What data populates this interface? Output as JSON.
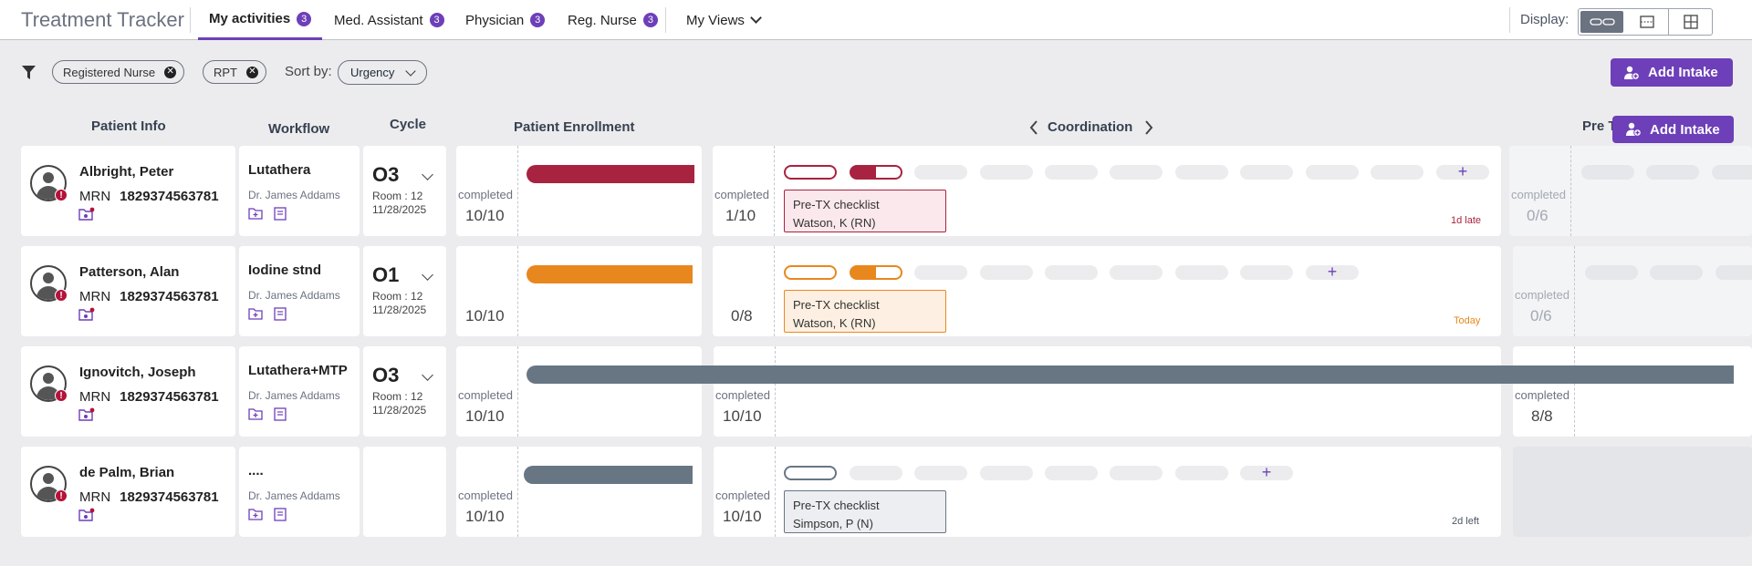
{
  "app": {
    "title": "Treatment Tracker"
  },
  "tabs": [
    {
      "label": "My activities",
      "count": "3"
    },
    {
      "label": "Med. Assistant",
      "count": "3"
    },
    {
      "label": "Physician",
      "count": "3"
    },
    {
      "label": "Reg. Nurse",
      "count": "3"
    }
  ],
  "my_views": {
    "label": "My Views"
  },
  "display": {
    "label": "Display:",
    "options": [
      "oval-view-icon",
      "list-view-icon",
      "grid-view-icon"
    ],
    "selected": "oval-view-icon"
  },
  "filters": {
    "chips": [
      {
        "label": "Registered Nurse"
      },
      {
        "label": "RPT"
      }
    ],
    "sort_label": "Sort by:",
    "sort_value": "Urgency"
  },
  "actions": {
    "add_intake": "Add Intake"
  },
  "columns": {
    "patient_info": "Patient Info",
    "workflow": "Workflow",
    "cycle": "Cycle",
    "enrollment": "Patient Enrollment",
    "coordination": "Coordination",
    "pretx_partial": "Pre T"
  },
  "colors": {
    "accent": "#6d3fb8",
    "late": "#a8233f",
    "today": "#e8871e",
    "done": "#687684",
    "alert": "#b4123a"
  },
  "rows": [
    {
      "name": "Albright, Peter",
      "mrn_label": "MRN",
      "mrn": "1829374563781",
      "workflow": "Lutathera",
      "doctor": "Dr. James Addams",
      "cycle": "O3",
      "room": "Room : 12",
      "date": "11/28/2025",
      "enrollment": {
        "label": "completed",
        "value": "10/10",
        "progress": 1.0
      },
      "coordination": {
        "label": "completed",
        "value": "1/10",
        "task": "Pre-TX checklist",
        "assignee": "Watson, K (RN)",
        "status": "1d late"
      },
      "pretx": {
        "label": "completed",
        "value": "0/6"
      }
    },
    {
      "name": "Patterson, Alan",
      "mrn_label": "MRN",
      "mrn": "1829374563781",
      "workflow": "Iodine stnd",
      "doctor": "Dr. James Addams",
      "cycle": "O1",
      "room": "Room : 12",
      "date": "11/28/2025",
      "enrollment": {
        "label": "",
        "value": "10/10",
        "progress": 1.0
      },
      "coordination": {
        "label": "",
        "value": "0/8",
        "task": "Pre-TX checklist",
        "assignee": "Watson, K (RN)",
        "status": "Today"
      },
      "pretx": {
        "label": "completed",
        "value": "0/6"
      }
    },
    {
      "name": "Ignovitch, Joseph",
      "mrn_label": "MRN",
      "mrn": "1829374563781",
      "workflow": "Lutathera+MTP",
      "doctor": "Dr. James Addams",
      "cycle": "O3",
      "room": "Room : 12",
      "date": "11/28/2025",
      "enrollment": {
        "label": "completed",
        "value": "10/10",
        "progress": 1.0
      },
      "coordination": {
        "label": "completed",
        "value": "10/10"
      },
      "pretx": {
        "label": "completed",
        "value": "8/8"
      }
    },
    {
      "name": "de Palm, Brian",
      "mrn_label": "MRN",
      "mrn": "1829374563781",
      "workflow": "....",
      "doctor": "Dr. James Addams",
      "enrollment": {
        "label": "completed",
        "value": "10/10",
        "progress": 1.0
      },
      "coordination": {
        "label": "completed",
        "value": "10/10",
        "task": "Pre-TX checklist",
        "assignee": "Simpson, P (N)",
        "status": "2d left"
      }
    }
  ]
}
